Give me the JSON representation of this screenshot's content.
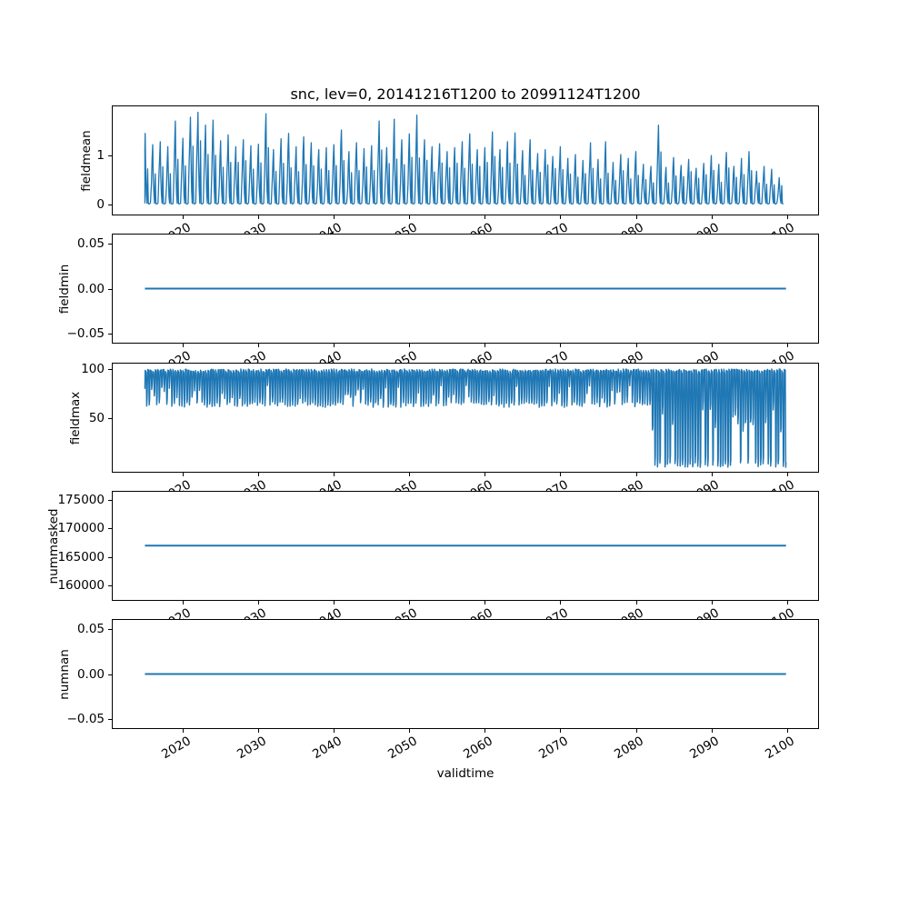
{
  "figure": {
    "title": "snc, lev=0, 20141216T1200 to 20991124T1200",
    "background": "#ffffff",
    "line_color": "#1f77b4",
    "axis_color": "#000000"
  },
  "x_axis": {
    "label": "validtime",
    "tick_labels": [
      "2020",
      "2030",
      "2040",
      "2050",
      "2060",
      "2070",
      "2080",
      "2090",
      "2100"
    ],
    "tick_years": [
      2020,
      2030,
      2040,
      2050,
      2060,
      2070,
      2080,
      2090,
      2100
    ],
    "xlim": [
      2010.7,
      2104.15
    ],
    "data_start_year": 2014.96,
    "data_end_year": 2099.9
  },
  "chart_data": [
    {
      "name": "fieldmean",
      "type": "line",
      "ylabel": "fieldmean",
      "ylim": [
        -0.2,
        2.0
      ],
      "yticks": [
        {
          "v": 1,
          "label": "1"
        },
        {
          "v": 0,
          "label": "0"
        }
      ],
      "pattern": "annual-spikes",
      "baseline": 0.02,
      "peak_start_year": 2015,
      "annual_peaks": [
        1.45,
        1.22,
        1.28,
        1.18,
        1.7,
        1.35,
        1.78,
        1.88,
        1.62,
        1.72,
        1.3,
        1.42,
        1.18,
        1.32,
        1.2,
        1.23,
        1.85,
        1.12,
        1.34,
        1.45,
        1.18,
        1.38,
        1.26,
        1.12,
        1.16,
        1.22,
        1.52,
        1.08,
        1.26,
        1.14,
        1.2,
        1.7,
        1.16,
        1.74,
        1.32,
        1.44,
        1.82,
        1.32,
        1.18,
        1.24,
        1.08,
        1.16,
        1.28,
        1.44,
        1.12,
        1.16,
        1.48,
        1.12,
        1.28,
        1.46,
        1.1,
        1.32,
        1.04,
        1.12,
        0.98,
        1.18,
        0.94,
        1.02,
        0.9,
        1.26,
        0.92,
        1.28,
        0.86,
        1.02,
        0.94,
        1.08,
        0.82,
        0.78,
        1.62,
        0.76,
        0.96,
        0.8,
        0.92,
        0.74,
        0.84,
        1.0,
        0.82,
        1.06,
        0.78,
        0.94,
        1.08,
        0.68,
        0.78,
        0.72,
        0.55
      ]
    },
    {
      "name": "fieldmin",
      "type": "line",
      "ylabel": "fieldmin",
      "ylim": [
        -0.0605,
        0.0605
      ],
      "yticks": [
        {
          "v": 0.05,
          "label": "0.05"
        },
        {
          "v": 0,
          "label": "0.00"
        },
        {
          "v": -0.05,
          "label": "−0.05"
        }
      ],
      "pattern": "constant",
      "value": 0.0
    },
    {
      "name": "fieldmax",
      "type": "line",
      "ylabel": "fieldmax",
      "ylim": [
        -4,
        105.5
      ],
      "yticks": [
        {
          "v": 100,
          "label": "100"
        },
        {
          "v": 50,
          "label": "50"
        }
      ],
      "pattern": "seasonal-square",
      "high": 100,
      "low_band_early": [
        61,
        67
      ],
      "shallow_dip_early": [
        70,
        84
      ],
      "low_band_late": [
        0.5,
        5
      ],
      "mixed_low_late": [
        35,
        62
      ],
      "regime_change_year": 2082,
      "start_value": 80
    },
    {
      "name": "nummasked",
      "type": "line",
      "ylabel": "nummasked",
      "ylim": [
        157500,
        176400
      ],
      "yticks": [
        {
          "v": 175000,
          "label": "175000"
        },
        {
          "v": 170000,
          "label": "170000"
        },
        {
          "v": 165000,
          "label": "165000"
        },
        {
          "v": 160000,
          "label": "160000"
        }
      ],
      "pattern": "constant",
      "value": 167000
    },
    {
      "name": "numnan",
      "type": "line",
      "ylabel": "numnan",
      "ylim": [
        -0.0605,
        0.0605
      ],
      "yticks": [
        {
          "v": 0.05,
          "label": "0.05"
        },
        {
          "v": 0,
          "label": "0.00"
        },
        {
          "v": -0.05,
          "label": "−0.05"
        }
      ],
      "pattern": "constant",
      "value": 0.0
    }
  ]
}
